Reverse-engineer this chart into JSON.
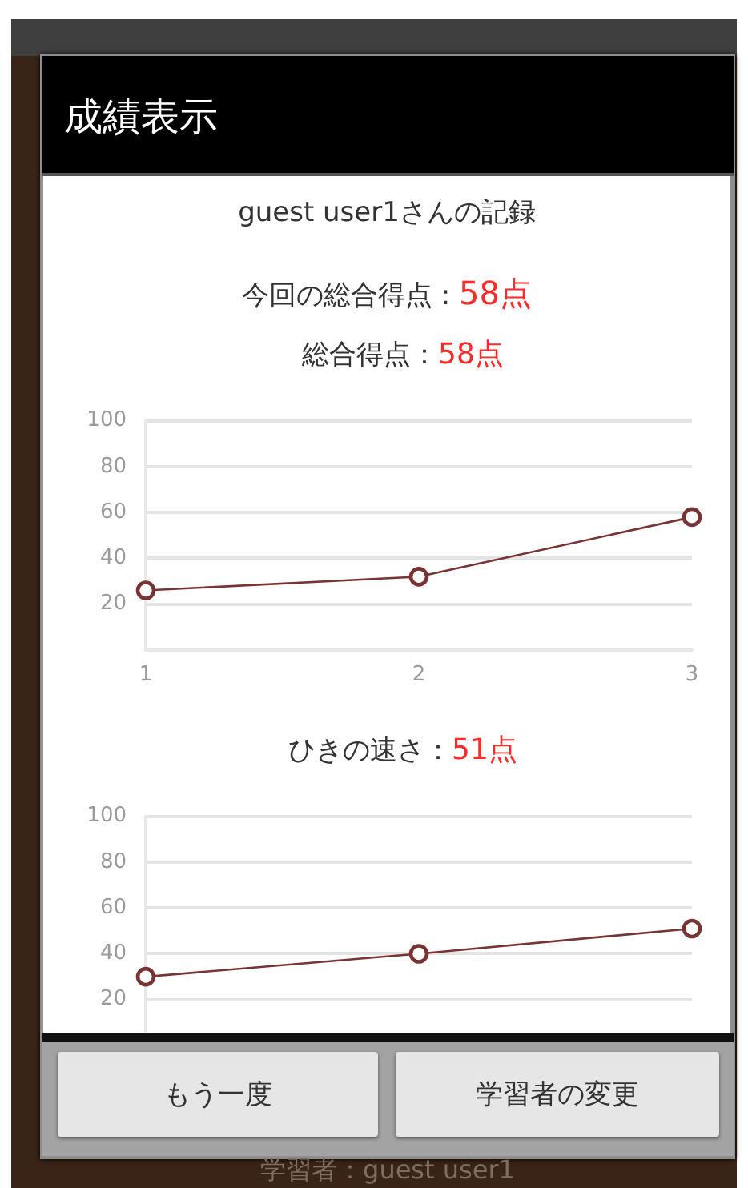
{
  "chart_data": [
    {
      "type": "other",
      "title": "成績表示",
      "subtitle": "guest user1さんの記録",
      "annotations": [
        "今回の総合得点 : 58点",
        "もう一度",
        "学習者の変更",
        "学習者：guest user1"
      ]
    },
    {
      "type": "line",
      "title": "総合得点：58点",
      "categories": [
        "1",
        "2",
        "3"
      ],
      "series": [
        {
          "color": "#7a3333",
          "values": [
            26,
            32,
            58
          ]
        }
      ],
      "ylim": [
        0,
        100
      ],
      "yticks": [
        20,
        40,
        60,
        80,
        100
      ],
      "grid": "y",
      "marker": "circle"
    },
    {
      "type": "line",
      "title": "ひきの速さ：51点",
      "categories": [
        null,
        null,
        null
      ],
      "series": [
        {
          "color": "#7a3333",
          "values": [
            30,
            40,
            51
          ]
        }
      ],
      "ylim": [
        0,
        100
      ],
      "yticks": [
        20,
        40,
        60,
        80,
        100
      ],
      "grid": "y",
      "marker": "circle",
      "tick_labels": "y"
    }
  ]
}
